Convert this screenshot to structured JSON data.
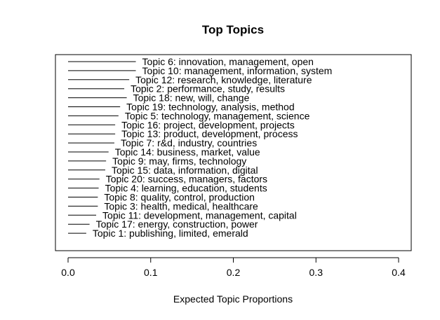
{
  "chart_data": {
    "type": "bar",
    "title": "Top Topics",
    "xlabel": "Expected Topic Proportions",
    "ylabel": "",
    "xlim": [
      0,
      0.4
    ],
    "xticks": [
      "0.0",
      "0.1",
      "0.2",
      "0.3",
      "0.4"
    ],
    "xtick_values": [
      0,
      0.1,
      0.2,
      0.3,
      0.4
    ],
    "grid": false,
    "orientation": "horizontal",
    "categories": [
      "Topic 6: innovation, management, open",
      "Topic 10: management, information, system",
      "Topic 12: research, knowledge, literature",
      "Topic 2: performance, study, results",
      "Topic 18: new, will, change",
      "Topic 19: technology, analysis, method",
      "Topic 5: technology, management, science",
      "Topic 16: project, development, projects",
      "Topic 13: product, development, process",
      "Topic 7: r&d, industry, countries",
      "Topic 14: business, market, value",
      "Topic 9: may, firms, technology",
      "Topic 15: data, information, digital",
      "Topic 20: success, managers, factors",
      "Topic 4: learning, education, students",
      "Topic 8: quality, control, production",
      "Topic 3: health, medical, healthcare",
      "Topic 11: development, management, capital",
      "Topic 17: energy, construction, power",
      "Topic 1: publishing, limited, emerald"
    ],
    "values": [
      0.082,
      0.082,
      0.074,
      0.068,
      0.071,
      0.063,
      0.061,
      0.057,
      0.057,
      0.056,
      0.049,
      0.046,
      0.045,
      0.038,
      0.037,
      0.036,
      0.036,
      0.034,
      0.026,
      0.022
    ]
  }
}
